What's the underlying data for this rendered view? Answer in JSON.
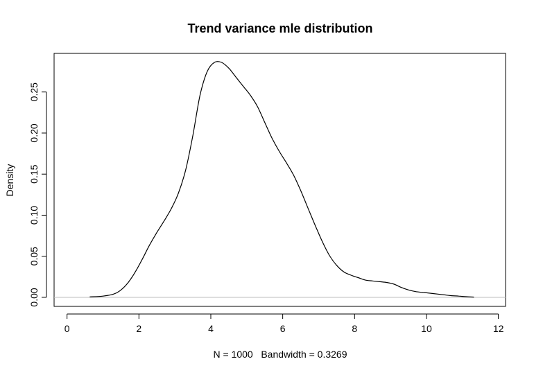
{
  "chart_data": {
    "type": "line",
    "title": "Trend variance mle distribution",
    "xlabel": "N = 1000   Bandwidth = 0.3269",
    "ylabel": "Density",
    "xlim": [
      -0.36,
      12.2
    ],
    "ylim": [
      -0.011,
      0.297
    ],
    "xticks": [
      0,
      2,
      4,
      6,
      8,
      10,
      12
    ],
    "xtick_labels": [
      "0",
      "2",
      "4",
      "6",
      "8",
      "10",
      "12"
    ],
    "yticks": [
      0.0,
      0.05,
      0.1,
      0.15,
      0.2,
      0.25
    ],
    "ytick_labels": [
      "0.00",
      "0.05",
      "0.10",
      "0.15",
      "0.20",
      "0.25"
    ],
    "baseline": {
      "y": 0,
      "color": "#bebebe"
    },
    "grid": false,
    "legend": "none",
    "series": [
      {
        "color": "#000000",
        "x": [
          0.63,
          1.0,
          1.3,
          1.5,
          1.7,
          1.9,
          2.1,
          2.3,
          2.5,
          2.7,
          2.9,
          3.1,
          3.3,
          3.5,
          3.7,
          3.9,
          4.1,
          4.3,
          4.5,
          4.7,
          4.9,
          5.1,
          5.3,
          5.5,
          5.7,
          5.9,
          6.1,
          6.3,
          6.5,
          6.7,
          6.9,
          7.1,
          7.3,
          7.5,
          7.7,
          7.9,
          8.1,
          8.3,
          8.5,
          8.7,
          8.9,
          9.1,
          9.3,
          9.5,
          9.7,
          9.9,
          10.1,
          10.3,
          10.5,
          10.7,
          10.9,
          11.1,
          11.32
        ],
        "y": [
          0.0006,
          0.0015,
          0.004,
          0.009,
          0.018,
          0.031,
          0.047,
          0.064,
          0.079,
          0.093,
          0.108,
          0.127,
          0.155,
          0.197,
          0.246,
          0.275,
          0.286,
          0.286,
          0.279,
          0.268,
          0.257,
          0.246,
          0.232,
          0.213,
          0.194,
          0.178,
          0.164,
          0.149,
          0.13,
          0.109,
          0.088,
          0.068,
          0.051,
          0.039,
          0.031,
          0.027,
          0.024,
          0.021,
          0.02,
          0.019,
          0.018,
          0.016,
          0.012,
          0.009,
          0.007,
          0.006,
          0.005,
          0.004,
          0.003,
          0.002,
          0.0015,
          0.0008,
          0.0003
        ]
      }
    ]
  }
}
